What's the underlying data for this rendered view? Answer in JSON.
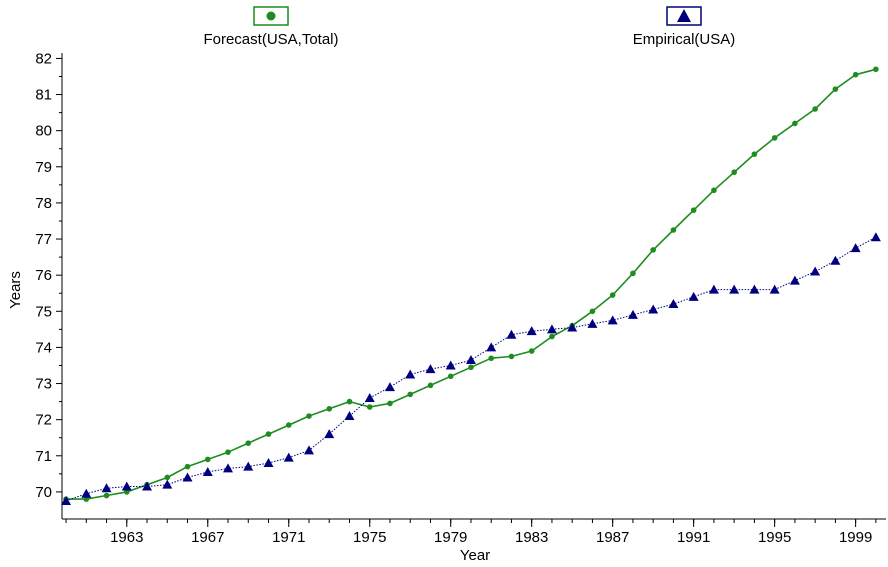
{
  "chart_data": {
    "type": "line",
    "title": "",
    "xlabel": "Year",
    "ylabel": "Years",
    "xlim": [
      1959.8,
      2000.5
    ],
    "ylim": [
      69.25,
      82.15
    ],
    "x_ticks": [
      1963,
      1967,
      1971,
      1975,
      1979,
      1983,
      1987,
      1991,
      1995,
      1999
    ],
    "y_ticks": [
      70,
      71,
      72,
      73,
      74,
      75,
      76,
      77,
      78,
      79,
      80,
      81,
      82
    ],
    "grid": false,
    "legend_position": "top",
    "series": [
      {
        "name": "Forecast(USA,Total)",
        "color": "#1e8c1e",
        "marker": "circle",
        "line_style": "solid",
        "x": [
          1960,
          1961,
          1962,
          1963,
          1964,
          1965,
          1966,
          1967,
          1968,
          1969,
          1970,
          1971,
          1972,
          1973,
          1974,
          1975,
          1976,
          1977,
          1978,
          1979,
          1980,
          1981,
          1982,
          1983,
          1984,
          1985,
          1986,
          1987,
          1988,
          1989,
          1990,
          1991,
          1992,
          1993,
          1994,
          1995,
          1996,
          1997,
          1998,
          1999,
          2000
        ],
        "values": [
          69.8,
          69.8,
          69.9,
          70.0,
          70.2,
          70.4,
          70.7,
          70.9,
          71.1,
          71.35,
          71.6,
          71.85,
          72.1,
          72.3,
          72.5,
          72.35,
          72.45,
          72.7,
          72.95,
          73.2,
          73.45,
          73.7,
          73.75,
          73.9,
          74.3,
          74.6,
          75.0,
          75.45,
          76.05,
          76.7,
          77.25,
          77.8,
          78.35,
          78.85,
          79.35,
          79.8,
          80.2,
          80.6,
          81.15,
          81.55,
          81.7
        ]
      },
      {
        "name": "Empirical(USA)",
        "color": "#00007f",
        "marker": "triangle",
        "line_style": "dotted",
        "x": [
          1960,
          1961,
          1962,
          1963,
          1964,
          1965,
          1966,
          1967,
          1968,
          1969,
          1970,
          1971,
          1972,
          1973,
          1974,
          1975,
          1976,
          1977,
          1978,
          1979,
          1980,
          1981,
          1982,
          1983,
          1984,
          1985,
          1986,
          1987,
          1988,
          1989,
          1990,
          1991,
          1992,
          1993,
          1994,
          1995,
          1996,
          1997,
          1998,
          1999,
          2000
        ],
        "values": [
          69.75,
          69.95,
          70.1,
          70.15,
          70.15,
          70.2,
          70.4,
          70.55,
          70.65,
          70.7,
          70.8,
          70.95,
          71.15,
          71.6,
          72.1,
          72.6,
          72.9,
          73.25,
          73.4,
          73.5,
          73.65,
          74.0,
          74.35,
          74.45,
          74.5,
          74.55,
          74.65,
          74.75,
          74.9,
          75.05,
          75.2,
          75.4,
          75.6,
          75.6,
          75.6,
          75.6,
          75.85,
          76.1,
          76.4,
          76.75,
          77.05
        ]
      }
    ]
  }
}
